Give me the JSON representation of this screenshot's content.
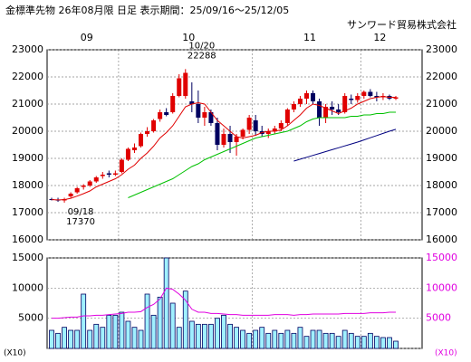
{
  "chart_data": [
    {
      "type": "candlestick",
      "title": "金標準先物 26年08月限 日足 表示期間：25/09/16～25/12/05",
      "subtitle": "サンワード貿易株式会社",
      "xticks": [
        {
          "value": 0,
          "label": "09"
        },
        {
          "value": 11,
          "label": "10"
        },
        {
          "value": 32,
          "label": "11"
        },
        {
          "value": 49,
          "label": "12"
        }
      ],
      "xlim": [
        0,
        54
      ],
      "ylim": [
        16000,
        23000
      ],
      "yticks": [
        16000,
        17000,
        18000,
        19000,
        20000,
        21000,
        22000,
        23000
      ],
      "up_color": "#e00000",
      "down_color": "#000060",
      "annotations": [
        [
          "10/20",
          "22288"
        ],
        [
          "09/18",
          "17370"
        ]
      ],
      "open": [
        17500,
        17480,
        17450,
        17600,
        17750,
        17950,
        18000,
        18150,
        18350,
        18450,
        18400,
        18500,
        18950,
        19300,
        19450,
        19900,
        20000,
        20450,
        20700,
        20700,
        21300,
        21300,
        21100,
        21000,
        20500,
        20700,
        20300,
        19500,
        19900,
        19600,
        19800,
        20050,
        20400,
        20000,
        19900,
        20000,
        20100,
        20300,
        20800,
        21000,
        21200,
        21400,
        21100,
        20500,
        20900,
        20800,
        20700,
        21200,
        21150,
        21300,
        21450,
        21300,
        21250,
        21300,
        21200
      ],
      "high": [
        17550,
        17550,
        17550,
        17750,
        17950,
        18050,
        18200,
        18350,
        18500,
        18550,
        18550,
        19000,
        19400,
        19550,
        19950,
        20150,
        20450,
        20800,
        20850,
        21400,
        22100,
        22288,
        21800,
        21500,
        20900,
        20800,
        20500,
        20100,
        20200,
        19900,
        20100,
        20600,
        20600,
        20200,
        20100,
        20200,
        20400,
        20850,
        21100,
        21300,
        21500,
        21500,
        21200,
        21000,
        21100,
        21000,
        21400,
        21350,
        21400,
        21500,
        21550,
        21450,
        21400,
        21350,
        21300
      ],
      "low": [
        17450,
        17400,
        17370,
        17550,
        17700,
        17850,
        17950,
        18100,
        18250,
        18300,
        18350,
        18450,
        18900,
        19200,
        19400,
        19800,
        19950,
        20350,
        20550,
        20650,
        21250,
        21200,
        20700,
        20300,
        20200,
        20200,
        19300,
        19400,
        19200,
        19100,
        19700,
        19900,
        19850,
        19800,
        19750,
        19900,
        20000,
        20200,
        20700,
        20900,
        21000,
        21000,
        20200,
        20300,
        20600,
        20600,
        20650,
        21000,
        21050,
        21200,
        21250,
        21100,
        21150,
        21150,
        21150
      ],
      "close": [
        17480,
        17450,
        17500,
        17700,
        17900,
        18000,
        18150,
        18300,
        18400,
        18400,
        18450,
        18950,
        19350,
        19400,
        19900,
        20000,
        20400,
        20700,
        20600,
        21300,
        21950,
        22150,
        21000,
        20500,
        20700,
        20300,
        19500,
        19900,
        19600,
        19800,
        20050,
        20500,
        20000,
        19900,
        20000,
        20100,
        20300,
        20800,
        21000,
        21200,
        21400,
        21100,
        20500,
        20900,
        20800,
        20700,
        21300,
        21150,
        21300,
        21450,
        21300,
        21250,
        21300,
        21200,
        21250
      ],
      "series": [
        {
          "color": "#e00000",
          "values": [
            17480,
            17470,
            17480,
            17530,
            17610,
            17700,
            17800,
            17950,
            18050,
            18150,
            18250,
            18400,
            18600,
            18750,
            19000,
            19200,
            19450,
            19750,
            19950,
            20200,
            20550,
            20900,
            21000,
            21050,
            21000,
            20700,
            20400,
            20200,
            20000,
            19800,
            19750,
            19800,
            19850,
            19950,
            20000,
            20000,
            20050,
            20200,
            20400,
            20600,
            20850,
            21000,
            20950,
            20850,
            20750,
            20650,
            20750,
            20850,
            21000,
            21100,
            21200,
            21250,
            21280,
            21250,
            21250
          ]
        },
        {
          "color": "#00c000",
          "values": [
            null,
            null,
            null,
            null,
            null,
            null,
            null,
            null,
            null,
            null,
            null,
            null,
            17550,
            17650,
            17750,
            17850,
            17950,
            18050,
            18150,
            18250,
            18400,
            18550,
            18700,
            18800,
            18950,
            19050,
            19150,
            19250,
            19350,
            19450,
            19550,
            19650,
            19750,
            19800,
            19850,
            19900,
            19950,
            20000,
            20100,
            20200,
            20350,
            20450,
            20500,
            20500,
            20500,
            20500,
            20500,
            20550,
            20550,
            20600,
            20600,
            20650,
            20650,
            20700,
            20700
          ]
        },
        {
          "color": "#000080",
          "values": [
            null,
            null,
            null,
            null,
            null,
            null,
            null,
            null,
            null,
            null,
            null,
            null,
            null,
            null,
            null,
            null,
            null,
            null,
            null,
            null,
            null,
            null,
            null,
            null,
            null,
            null,
            null,
            null,
            null,
            null,
            null,
            null,
            null,
            null,
            null,
            null,
            null,
            null,
            18900,
            18970,
            19040,
            19110,
            19180,
            19250,
            19320,
            19390,
            19460,
            19530,
            19600,
            19680,
            19760,
            19840,
            19920,
            20000,
            20070
          ]
        }
      ]
    },
    {
      "type": "bar",
      "unit": "(X10)",
      "ylim": [
        0,
        15000
      ],
      "yticks": [
        0,
        5000,
        10000,
        15000
      ],
      "color": "#a0f0ff",
      "edge_color": "#000060",
      "right_axis_color": "#e000e0",
      "values": [
        3000,
        2500,
        3500,
        3000,
        3000,
        9000,
        3000,
        4000,
        3500,
        5500,
        5500,
        6000,
        4500,
        3500,
        3000,
        9000,
        5500,
        8500,
        15000,
        7500,
        3500,
        9500,
        4500,
        4000,
        4000,
        4000,
        5000,
        5500,
        4000,
        3500,
        3000,
        2500,
        3000,
        3500,
        2500,
        3000,
        2500,
        3000,
        2500,
        3500,
        2000,
        3000,
        3000,
        2500,
        2500,
        2000,
        3000,
        2500,
        2000,
        2000,
        2500,
        2000,
        1800,
        1800,
        1200
      ],
      "series": [
        {
          "color": "#e000e0",
          "values": [
            5000,
            5000,
            5100,
            5200,
            5200,
            5400,
            5400,
            5500,
            5500,
            5600,
            5700,
            5800,
            6000,
            6000,
            6100,
            6800,
            7300,
            8200,
            10000,
            9800,
            9000,
            8000,
            6500,
            6000,
            6000,
            5800,
            5800,
            5700,
            5600,
            5600,
            5500,
            5500,
            5500,
            5500,
            5500,
            5600,
            5600,
            5600,
            5500,
            5600,
            5600,
            5700,
            5700,
            5700,
            5700,
            5700,
            5800,
            5800,
            5800,
            5800,
            5900,
            5900,
            5900,
            6000,
            6000
          ]
        }
      ]
    }
  ]
}
